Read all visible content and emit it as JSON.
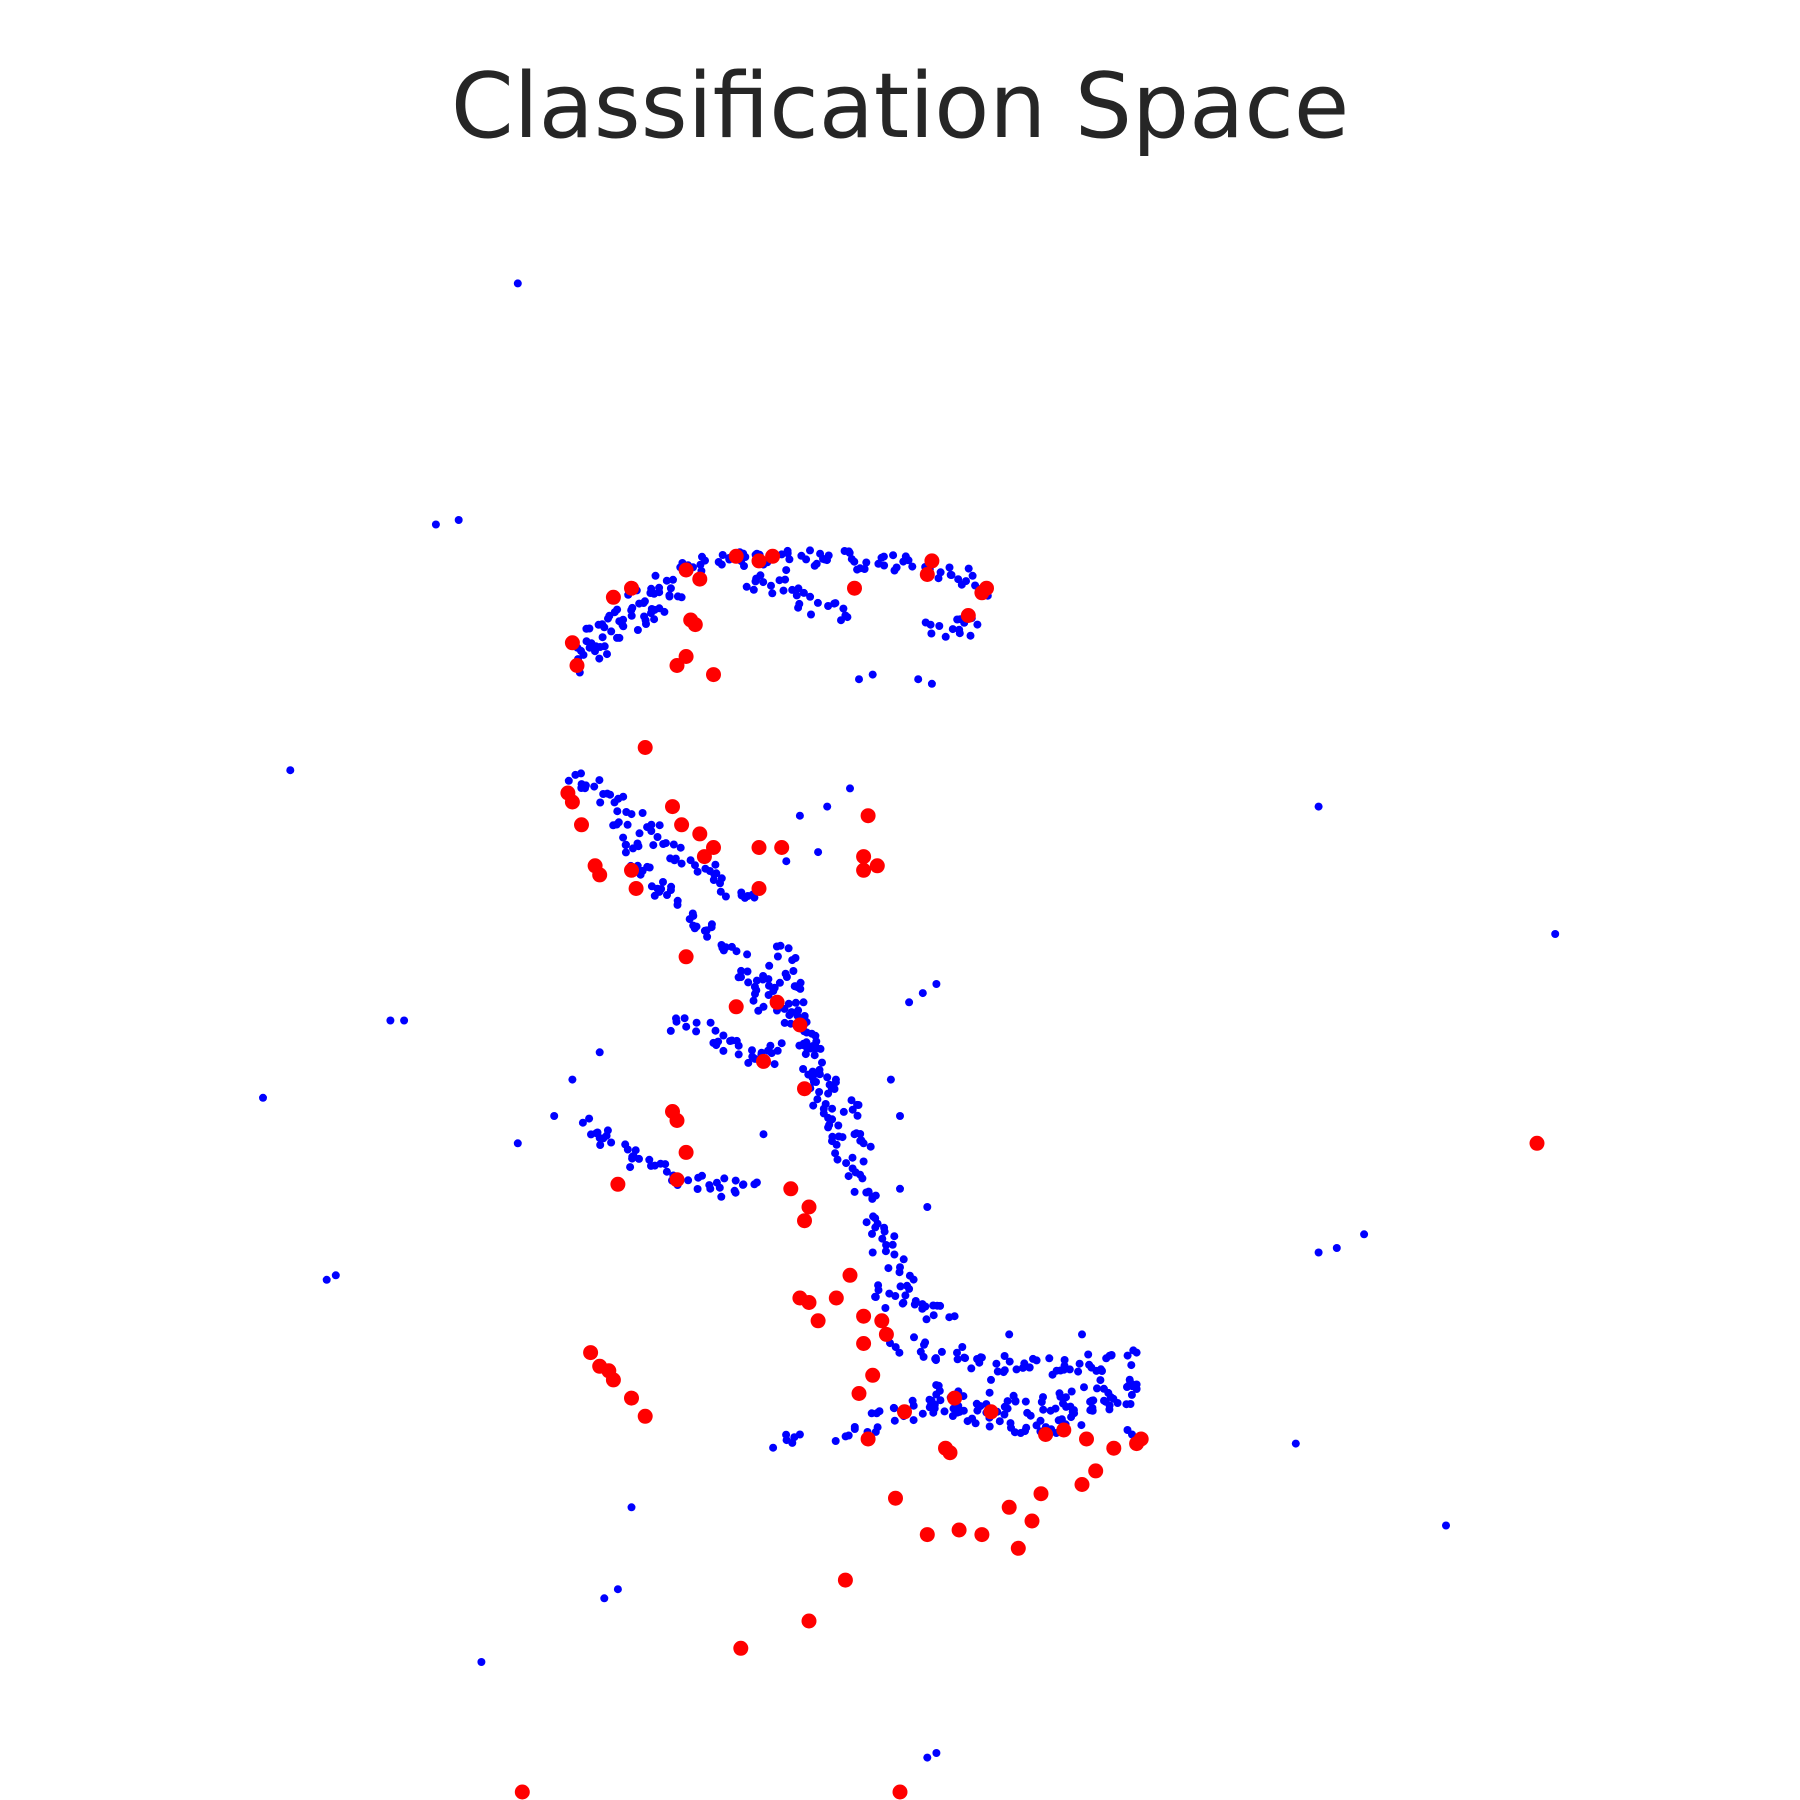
{
  "chart_data": {
    "type": "scatter",
    "title": "Classification Space",
    "xlabel": "",
    "ylabel": "",
    "xlim": [
      -8.2,
      8.2
    ],
    "ylim": [
      -8.2,
      8.2
    ],
    "grid": false,
    "axes_visible": false,
    "series": [
      {
        "color": "#0000ff",
        "marker_size": "small",
        "segments": [
          [
            [
              -3.6,
              4.0
            ],
            [
              -3.3,
              4.4
            ],
            [
              -2.9,
              4.7
            ],
            [
              -2.4,
              5.0
            ],
            [
              -1.9,
              5.1
            ],
            [
              -1.3,
              5.1
            ],
            [
              -0.7,
              5.15
            ],
            [
              0.0,
              5.05
            ],
            [
              0.5,
              5.0
            ],
            [
              0.9,
              4.8
            ]
          ],
          [
            [
              -3.5,
              3.9
            ],
            [
              -3.2,
              4.2
            ],
            [
              -2.8,
              4.5
            ],
            [
              -2.4,
              4.7
            ]
          ],
          [
            [
              -1.7,
              4.9
            ],
            [
              -1.3,
              4.8
            ],
            [
              -0.9,
              4.6
            ],
            [
              -0.6,
              4.5
            ]
          ],
          [
            [
              0.3,
              4.4
            ],
            [
              0.6,
              4.35
            ],
            [
              0.85,
              4.4
            ]
          ],
          [
            [
              -3.6,
              2.8
            ],
            [
              -3.3,
              2.6
            ],
            [
              -3.0,
              2.4
            ],
            [
              -2.7,
              2.1
            ],
            [
              -2.4,
              1.8
            ],
            [
              -2.0,
              1.6
            ],
            [
              -1.6,
              1.4
            ]
          ],
          [
            [
              -3.2,
              2.2
            ],
            [
              -3.0,
              2.0
            ],
            [
              -2.8,
              1.7
            ],
            [
              -2.6,
              1.5
            ],
            [
              -2.3,
              1.2
            ],
            [
              -2.0,
              0.9
            ],
            [
              -1.7,
              0.6
            ],
            [
              -1.5,
              0.2
            ]
          ],
          [
            [
              -2.5,
              0.0
            ],
            [
              -2.1,
              -0.1
            ],
            [
              -1.8,
              -0.3
            ],
            [
              -1.5,
              -0.4
            ],
            [
              -1.3,
              -0.2
            ]
          ],
          [
            [
              -1.3,
              0.9
            ],
            [
              -1.2,
              0.5
            ],
            [
              -1.1,
              0.1
            ],
            [
              -1.0,
              -0.3
            ],
            [
              -0.9,
              -0.7
            ],
            [
              -0.7,
              -1.2
            ],
            [
              -0.5,
              -1.6
            ],
            [
              -0.3,
              -2.0
            ],
            [
              -0.1,
              -2.4
            ],
            [
              0.1,
              -2.9
            ]
          ],
          [
            [
              -1.5,
              0.6
            ],
            [
              -1.3,
              0.3
            ],
            [
              -1.1,
              -0.1
            ],
            [
              -0.8,
              -0.5
            ],
            [
              -0.6,
              -0.9
            ],
            [
              -0.4,
              -1.3
            ]
          ],
          [
            [
              -3.5,
              -1.1
            ],
            [
              -3.2,
              -1.3
            ],
            [
              -2.8,
              -1.5
            ],
            [
              -2.4,
              -1.7
            ],
            [
              -2.0,
              -1.8
            ],
            [
              -1.6,
              -1.75
            ]
          ],
          [
            [
              -0.3,
              -2.9
            ],
            [
              -0.1,
              -3.0
            ],
            [
              0.2,
              -3.1
            ],
            [
              0.6,
              -3.2
            ]
          ],
          [
            [
              0.0,
              -3.5
            ],
            [
              0.4,
              -3.6
            ],
            [
              0.9,
              -3.7
            ],
            [
              1.4,
              -3.75
            ],
            [
              1.9,
              -3.75
            ],
            [
              2.3,
              -3.7
            ],
            [
              2.6,
              -3.6
            ]
          ],
          [
            [
              0.3,
              -4.0
            ],
            [
              0.6,
              -4.1
            ],
            [
              1.0,
              -4.15
            ],
            [
              1.4,
              -4.2
            ],
            [
              1.9,
              -4.1
            ],
            [
              2.3,
              -4.0
            ],
            [
              2.6,
              -3.95
            ]
          ],
          [
            [
              -0.6,
              -4.5
            ],
            [
              -0.3,
              -4.35
            ],
            [
              0.1,
              -4.25
            ],
            [
              0.5,
              -4.2
            ],
            [
              0.9,
              -4.3
            ],
            [
              1.3,
              -4.4
            ],
            [
              1.7,
              -4.38
            ],
            [
              2.2,
              -4.2
            ],
            [
              2.6,
              -4.0
            ]
          ],
          [
            [
              -1.3,
              -4.6
            ],
            [
              -1.1,
              -4.5
            ]
          ]
        ],
        "points": [
          [
            -4.2,
            8.15
          ],
          [
            -5.1,
            5.5
          ],
          [
            -4.85,
            5.55
          ],
          [
            -6.7,
            2.8
          ],
          [
            -5.6,
            0.05
          ],
          [
            -5.45,
            0.05
          ],
          [
            -7.0,
            -0.8
          ],
          [
            -6.3,
            -2.8
          ],
          [
            -6.2,
            -2.75
          ],
          [
            -4.2,
            -1.3
          ],
          [
            -3.8,
            -1.0
          ],
          [
            -3.6,
            -0.6
          ],
          [
            -3.3,
            -0.3
          ],
          [
            -3.25,
            -6.3
          ],
          [
            -3.1,
            -6.2
          ],
          [
            -2.95,
            -5.3
          ],
          [
            -4.6,
            -7.0
          ],
          [
            0.4,
            -8.0
          ],
          [
            0.3,
            -8.05
          ],
          [
            4.6,
            2.4
          ],
          [
            7.2,
            1.0
          ],
          [
            4.6,
            -2.5
          ],
          [
            4.8,
            -2.45
          ],
          [
            5.1,
            -2.3
          ],
          [
            4.35,
            -4.6
          ],
          [
            6.0,
            -5.5
          ],
          [
            2.55,
            -4.5
          ],
          [
            2.5,
            -4.45
          ],
          [
            -0.45,
            3.8
          ],
          [
            -0.3,
            3.85
          ],
          [
            0.2,
            3.8
          ],
          [
            0.35,
            3.75
          ],
          [
            -1.1,
            2.3
          ],
          [
            -0.8,
            2.4
          ],
          [
            -0.55,
            2.6
          ],
          [
            -1.25,
            1.8
          ],
          [
            -0.9,
            1.9
          ],
          [
            0.1,
            0.25
          ],
          [
            0.25,
            0.35
          ],
          [
            0.4,
            0.45
          ],
          [
            -0.1,
            -0.6
          ],
          [
            0.0,
            -1.0
          ],
          [
            -0.4,
            -1.5
          ],
          [
            0.0,
            -1.8
          ],
          [
            0.3,
            -2.0
          ],
          [
            -0.3,
            -2.5
          ],
          [
            1.0,
            -3.9
          ],
          [
            1.5,
            -4.4
          ],
          [
            2.0,
            -3.4
          ],
          [
            1.2,
            -3.4
          ],
          [
            -1.5,
            -1.2
          ],
          [
            -0.5,
            -1.2
          ]
        ]
      },
      {
        "color": "#ff0000",
        "marker_size": "large",
        "points": [
          [
            -3.6,
            4.2
          ],
          [
            -3.55,
            3.95
          ],
          [
            -3.15,
            4.7
          ],
          [
            -2.95,
            4.8
          ],
          [
            -2.2,
            4.9
          ],
          [
            -2.35,
            5.0
          ],
          [
            -1.8,
            5.15
          ],
          [
            -1.55,
            5.1
          ],
          [
            -1.4,
            5.15
          ],
          [
            -2.3,
            4.45
          ],
          [
            -2.25,
            4.4
          ],
          [
            -2.35,
            4.05
          ],
          [
            -2.45,
            3.95
          ],
          [
            -2.05,
            3.85
          ],
          [
            -0.5,
            4.8
          ],
          [
            0.35,
            5.1
          ],
          [
            0.3,
            4.95
          ],
          [
            0.95,
            4.8
          ],
          [
            0.9,
            4.75
          ],
          [
            0.75,
            4.5
          ],
          [
            -2.8,
            3.05
          ],
          [
            -3.65,
            2.55
          ],
          [
            -3.6,
            2.45
          ],
          [
            -3.5,
            2.2
          ],
          [
            -2.5,
            2.4
          ],
          [
            -2.4,
            2.2
          ],
          [
            -2.2,
            2.1
          ],
          [
            -2.15,
            1.85
          ],
          [
            -2.05,
            1.95
          ],
          [
            -1.55,
            1.95
          ],
          [
            -1.3,
            1.95
          ],
          [
            -3.35,
            1.75
          ],
          [
            -3.3,
            1.65
          ],
          [
            -2.95,
            1.7
          ],
          [
            -2.9,
            1.5
          ],
          [
            -1.55,
            1.5
          ],
          [
            -0.35,
            2.3
          ],
          [
            -0.4,
            1.85
          ],
          [
            -0.25,
            1.75
          ],
          [
            -0.4,
            1.7
          ],
          [
            -2.35,
            0.75
          ],
          [
            -1.8,
            0.2
          ],
          [
            -1.35,
            0.25
          ],
          [
            -1.1,
            0.0
          ],
          [
            -1.5,
            -0.4
          ],
          [
            -1.05,
            -0.7
          ],
          [
            -2.5,
            -0.95
          ],
          [
            -2.45,
            -1.05
          ],
          [
            -2.35,
            -1.4
          ],
          [
            -2.45,
            -1.7
          ],
          [
            -3.1,
            -1.75
          ],
          [
            -1.2,
            -1.8
          ],
          [
            -1.0,
            -2.0
          ],
          [
            -1.05,
            -2.15
          ],
          [
            -0.55,
            -2.75
          ],
          [
            -0.7,
            -3.0
          ],
          [
            -0.4,
            -3.2
          ],
          [
            -0.4,
            -3.5
          ],
          [
            -0.2,
            -3.25
          ],
          [
            -0.15,
            -3.4
          ],
          [
            -0.45,
            -4.05
          ],
          [
            0.05,
            -4.25
          ],
          [
            -0.3,
            -3.85
          ],
          [
            0.6,
            -4.1
          ],
          [
            1.0,
            -4.25
          ],
          [
            -3.4,
            -3.6
          ],
          [
            -3.3,
            -3.75
          ],
          [
            -3.2,
            -3.8
          ],
          [
            -3.15,
            -3.9
          ],
          [
            -2.95,
            -4.1
          ],
          [
            -2.8,
            -4.3
          ],
          [
            -1.1,
            -3.0
          ],
          [
            -1.0,
            -3.05
          ],
          [
            -0.9,
            -3.25
          ],
          [
            -0.05,
            -5.2
          ],
          [
            -0.35,
            -4.55
          ],
          [
            0.5,
            -4.65
          ],
          [
            0.55,
            -4.7
          ],
          [
            1.6,
            -4.5
          ],
          [
            1.8,
            -4.45
          ],
          [
            2.05,
            -4.55
          ],
          [
            2.15,
            -4.9
          ],
          [
            2.35,
            -4.65
          ],
          [
            2.65,
            -4.55
          ],
          [
            2.6,
            -4.6
          ],
          [
            1.2,
            -5.3
          ],
          [
            1.55,
            -5.15
          ],
          [
            2.0,
            -5.05
          ],
          [
            1.45,
            -5.45
          ],
          [
            0.3,
            -5.6
          ],
          [
            0.65,
            -5.55
          ],
          [
            0.9,
            -5.6
          ],
          [
            1.3,
            -5.75
          ],
          [
            -0.6,
            -6.1
          ],
          [
            -1.0,
            -6.55
          ],
          [
            -1.75,
            -6.85
          ],
          [
            -4.15,
            -8.75
          ],
          [
            0.0,
            -8.8
          ],
          [
            7.0,
            -1.3
          ]
        ]
      }
    ]
  }
}
